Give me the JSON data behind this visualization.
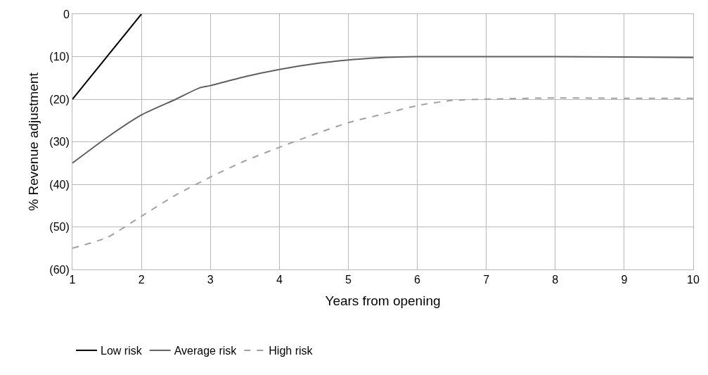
{
  "chart_data": {
    "type": "line",
    "xlabel": "Years from opening",
    "ylabel": "% Revenue adjustment",
    "xlim": [
      1,
      10
    ],
    "xticks": [
      1,
      2,
      3,
      4,
      5,
      6,
      7,
      8,
      9,
      10
    ],
    "ylim": [
      -60,
      0
    ],
    "yticks": [
      {
        "value": -60,
        "label": "(60)"
      },
      {
        "value": -50,
        "label": "(50)"
      },
      {
        "value": -40,
        "label": "(40)"
      },
      {
        "value": -30,
        "label": "(30)"
      },
      {
        "value": -20,
        "label": "(20)"
      },
      {
        "value": -10,
        "label": "(10)"
      },
      0
    ],
    "grid": true,
    "legend": "bottom",
    "marker": "none",
    "series": [
      {
        "name": "Low risk",
        "color": "#000000",
        "line_style": "solid",
        "x": [
          1,
          2
        ],
        "values": [
          -20,
          0
        ]
      },
      {
        "name": "Average risk",
        "color": "#606060",
        "line_style": "solid",
        "x": [
          1,
          1.5,
          2,
          2.5,
          2.85,
          3,
          3.5,
          4,
          4.5,
          5,
          5.5,
          6,
          7,
          8,
          9,
          10
        ],
        "values": [
          -35,
          -29,
          -23.7,
          -20,
          -17.3,
          -16.8,
          -14.7,
          -13,
          -11.7,
          -10.8,
          -10.2,
          -10,
          -10,
          -10,
          -10.1,
          -10.2
        ]
      },
      {
        "name": "High risk",
        "color": "#a0a0a0",
        "line_style": "dashed",
        "x": [
          1,
          1.5,
          2,
          2.5,
          3,
          3.5,
          4,
          4.5,
          5,
          5.5,
          6,
          6.5,
          7,
          8,
          9,
          10
        ],
        "values": [
          -55,
          -52.5,
          -47.5,
          -42.5,
          -38.3,
          -34.5,
          -31.3,
          -28.3,
          -25.5,
          -23.5,
          -21.5,
          -20.3,
          -20,
          -19.7,
          -19.8,
          -19.8
        ]
      }
    ]
  }
}
